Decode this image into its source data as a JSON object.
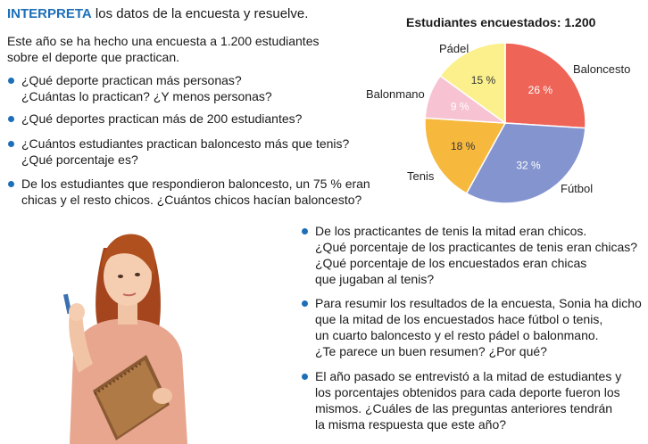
{
  "heading": {
    "keyword": "INTERPRETA",
    "rest": " los datos de la encuesta y resuelve."
  },
  "intro": "Este año se ha hecho una encuesta a 1.200 estudiantes sobre el deporte que practican.",
  "questions": [
    {
      "lines": [
        "¿Qué deporte practican más personas?",
        "¿Cuántas lo practican? ¿Y menos personas?"
      ]
    },
    {
      "lines": [
        "¿Qué deportes practican más de 200 estudiantes?"
      ]
    },
    {
      "lines": [
        "¿Cuántos estudiantes practican baloncesto más que tenis?",
        "¿Qué porcentaje es?"
      ]
    },
    {
      "lines": [
        "De los estudiantes que respondieron baloncesto, un 75 % eran",
        "chicas y el resto chicos. ¿Cuántos chicos hacían baloncesto?"
      ]
    },
    {
      "lines": [
        "De los practicantes de tenis la mitad eran chicos.",
        "¿Qué porcentaje de los practicantes de tenis eran chicas?",
        "¿Qué porcentaje de los encuestados eran chicas",
        "que jugaban al tenis?"
      ]
    },
    {
      "lines": [
        "Para resumir los resultados de la encuesta, Sonia ha dicho",
        "que la mitad de los encuestados hace fútbol o tenis,",
        "un cuarto baloncesto y el resto pádel o balonmano.",
        "¿Te parece un buen resumen? ¿Por qué?"
      ]
    },
    {
      "lines": [
        "El año pasado se entrevistó a la mitad de estudiantes y",
        "los porcentajes obtenidos para cada deporte fueron los",
        "mismos. ¿Cuáles de las preguntas anteriores tendrán",
        "la misma respuesta que este año?"
      ]
    }
  ],
  "chart_data": {
    "type": "pie",
    "title": "Estudiantes encuestados: 1.200",
    "slices": [
      {
        "label": "Baloncesto",
        "value": 26,
        "value_label": "26 %",
        "color": "#ee6457"
      },
      {
        "label": "Fútbol",
        "value": 32,
        "value_label": "32 %",
        "color": "#8494cf"
      },
      {
        "label": "Tenis",
        "value": 18,
        "value_label": "18 %",
        "color": "#f6b83d"
      },
      {
        "label": "Balonmano",
        "value": 9,
        "value_label": "9 %",
        "color": "#f7c3d2"
      },
      {
        "label": "Pádel",
        "value": 15,
        "value_label": "15 %",
        "color": "#fbf08c"
      }
    ]
  }
}
